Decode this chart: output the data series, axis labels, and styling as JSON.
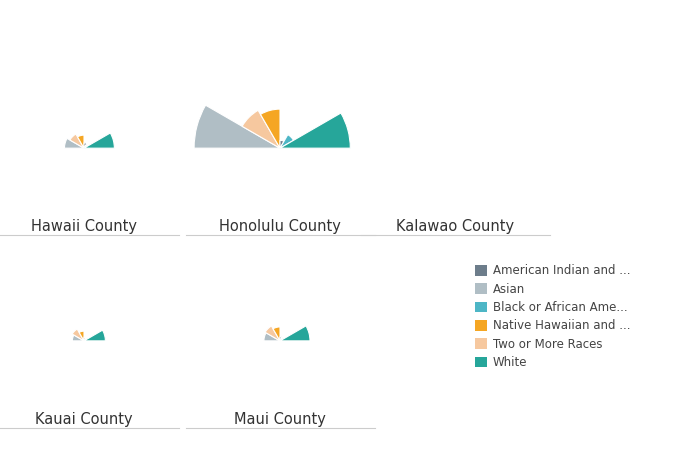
{
  "counties": [
    "Hawaii County",
    "Honolulu County",
    "Kalawao County",
    "Kauai County",
    "Maui County"
  ],
  "races": [
    "Asian",
    "Two or More Races",
    "Native Hawaiian and ...",
    "American Indian and ...",
    "Black or African Ame...",
    "White"
  ],
  "colors": [
    "#b0bec5",
    "#f6c89f",
    "#f5a623",
    "#6d7d8b",
    "#4db6c6",
    "#26a69a"
  ],
  "legend_races": [
    "American Indian and ...",
    "Asian",
    "Black or African Ame...",
    "Native Hawaiian and ...",
    "Two or More Races",
    "White"
  ],
  "legend_colors": [
    "#6d7d8b",
    "#b0bec5",
    "#4db6c6",
    "#f5a623",
    "#f6c89f",
    "#26a69a"
  ],
  "sizes": {
    "Hawaii County": [
      1.8,
      1.5,
      1.2,
      0.5,
      0.3,
      2.8
    ],
    "Honolulu County": [
      5.5,
      2.8,
      2.5,
      0.5,
      1.0,
      4.5
    ],
    "Kalawao County": [
      0.0,
      0.0,
      0.0,
      0.0,
      0.0,
      0.0
    ],
    "Kauai County": [
      1.2,
      1.4,
      1.0,
      0.4,
      0.3,
      2.2
    ],
    "Maui County": [
      1.5,
      1.6,
      1.3,
      0.4,
      0.3,
      2.8
    ]
  },
  "background_color": "#ffffff",
  "label_fontsize": 10.5,
  "legend_fontsize": 8.5,
  "figsize": [
    7.0,
    4.7
  ],
  "dpi": 100
}
